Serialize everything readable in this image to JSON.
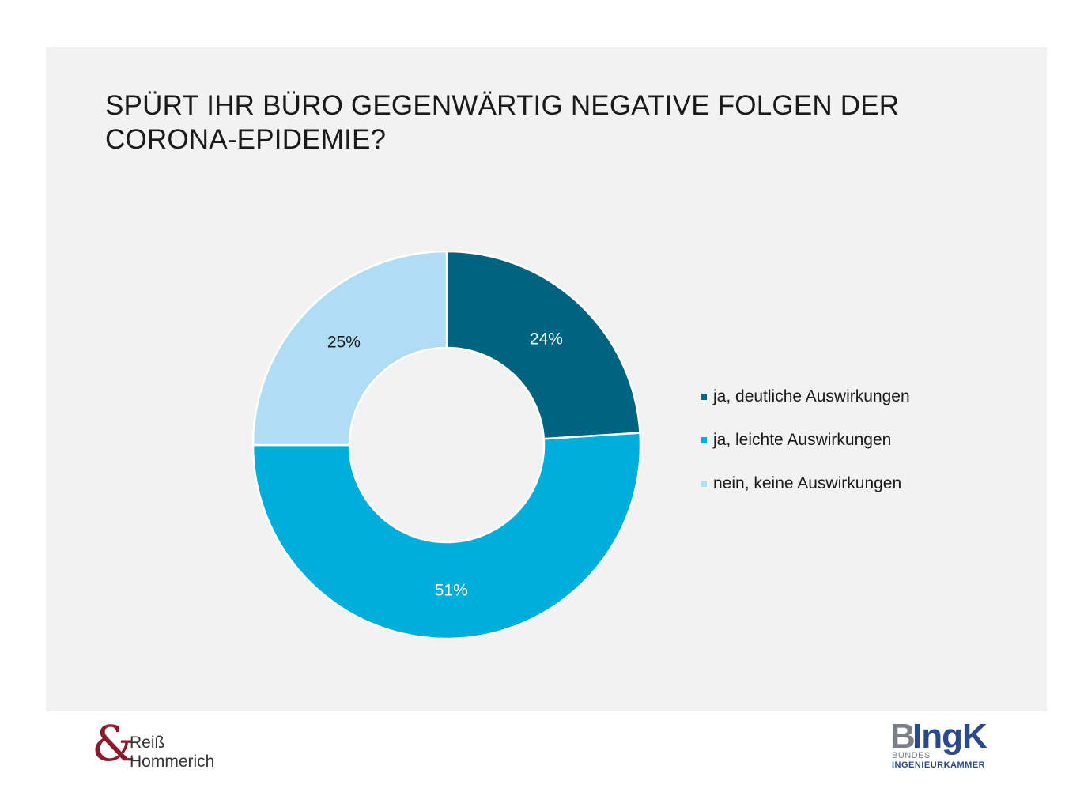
{
  "title_line1": "SPÜRT IHR BÜRO GEGENWÄRTIG NEGATIVE FOLGEN DER",
  "title_line2": "CORONA-EPIDEMIE?",
  "chart_data": {
    "type": "pie",
    "donut": true,
    "categories": [
      "ja, deutliche Auswirkungen",
      "ja, leichte Auswirkungen",
      "nein, keine Auswirkungen"
    ],
    "values": [
      24,
      51,
      25
    ],
    "labels": [
      "24%",
      "51%",
      "25%"
    ],
    "colors": [
      "#006480",
      "#00aedc",
      "#b0dcf4"
    ],
    "label_colors": [
      "#ffffff",
      "#ffffff",
      "#1a1a1a"
    ],
    "legend_placement": "right"
  },
  "logos": {
    "left_symbol": "&",
    "left_line1": "Reiß",
    "left_line2": "Hommerich",
    "right_b": "B",
    "right_rest": "IngK",
    "right_sub1": "BUNDES",
    "right_sub2": "INGENIEURKAMMER"
  }
}
